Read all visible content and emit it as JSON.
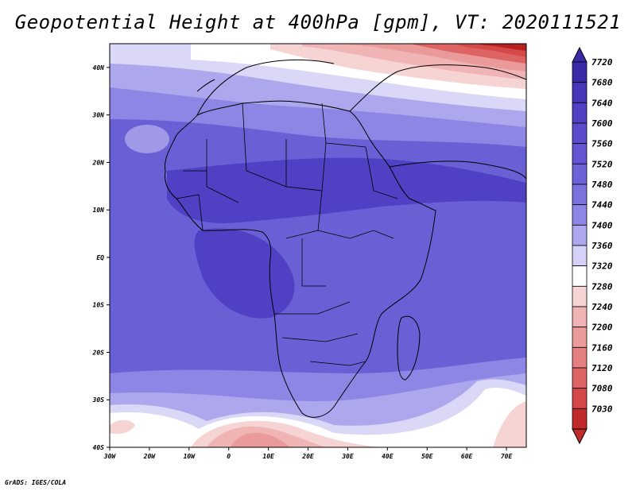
{
  "title": "Geopotential Height at 400hPa [gpm], VT: 2020111521",
  "credit": "GrADS: IGES/COLA",
  "map": {
    "lat_labels": [
      "40N",
      "30N",
      "20N",
      "10N",
      "EQ",
      "10S",
      "20S",
      "30S",
      "40S"
    ],
    "lon_labels": [
      "30W",
      "20W",
      "10W",
      "0",
      "10E",
      "20E",
      "30E",
      "40E",
      "50E",
      "60E",
      "70E"
    ],
    "lat_range": [
      -40,
      45
    ],
    "lon_range": [
      -30,
      75
    ]
  },
  "colorbar": {
    "labels": [
      "7720",
      "7680",
      "7640",
      "7600",
      "7560",
      "7520",
      "7480",
      "7440",
      "7400",
      "7360",
      "7320",
      "7280",
      "7240",
      "7200",
      "7160",
      "7120",
      "7080",
      "7030"
    ],
    "colors": [
      "#3a2aa8",
      "#4636b8",
      "#5040c4",
      "#5a4ccc",
      "#6455d2",
      "#6e62d8",
      "#7c72de",
      "#8e86e4",
      "#ada8ee",
      "#d4d2f8",
      "#ffffff",
      "#f6d4d4",
      "#f0b4b4",
      "#ea9a9a",
      "#e48080",
      "#de6464",
      "#d44848",
      "#c02a2a"
    ]
  },
  "colors": {
    "deep_blue": "#4a3cc0",
    "mid_blue": "#6a60d6",
    "light_blue": "#9f99e8",
    "pale": "#dad8f6",
    "pink": "#f2b8b8",
    "red": "#d44848",
    "dark_red": "#b82020"
  }
}
